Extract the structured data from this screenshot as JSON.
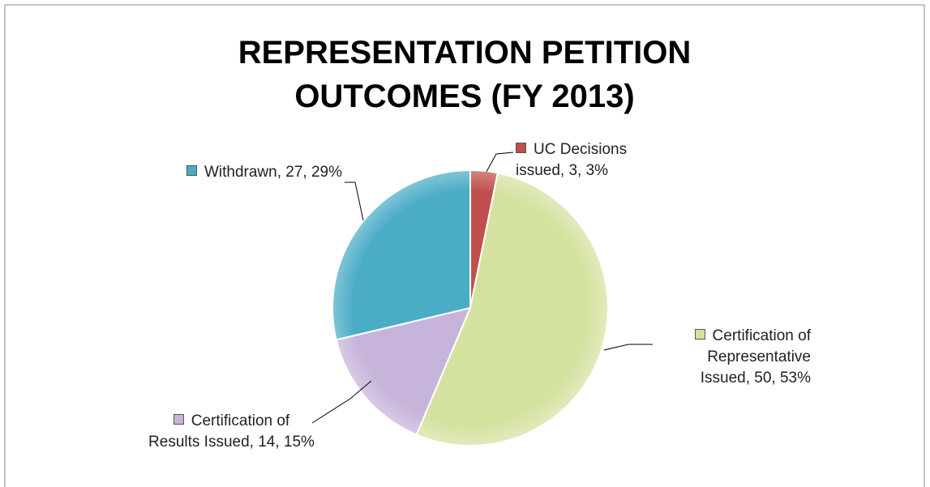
{
  "chart_data": {
    "type": "pie",
    "title": "REPRESENTATION PETITION OUTCOMES (FY 2013)",
    "values": [
      3,
      50,
      14,
      27
    ],
    "value_labels": [
      "UC Decisions issued, 3, 3%",
      "Certification of Representative Issued, 50, 53%",
      "Certification of Results Issued, 14, 15%",
      "Withdrawn, 27, 29%"
    ],
    "colors": [
      "#c0504d",
      "#d4e2a0",
      "#c7b4da",
      "#4bacc6"
    ]
  }
}
